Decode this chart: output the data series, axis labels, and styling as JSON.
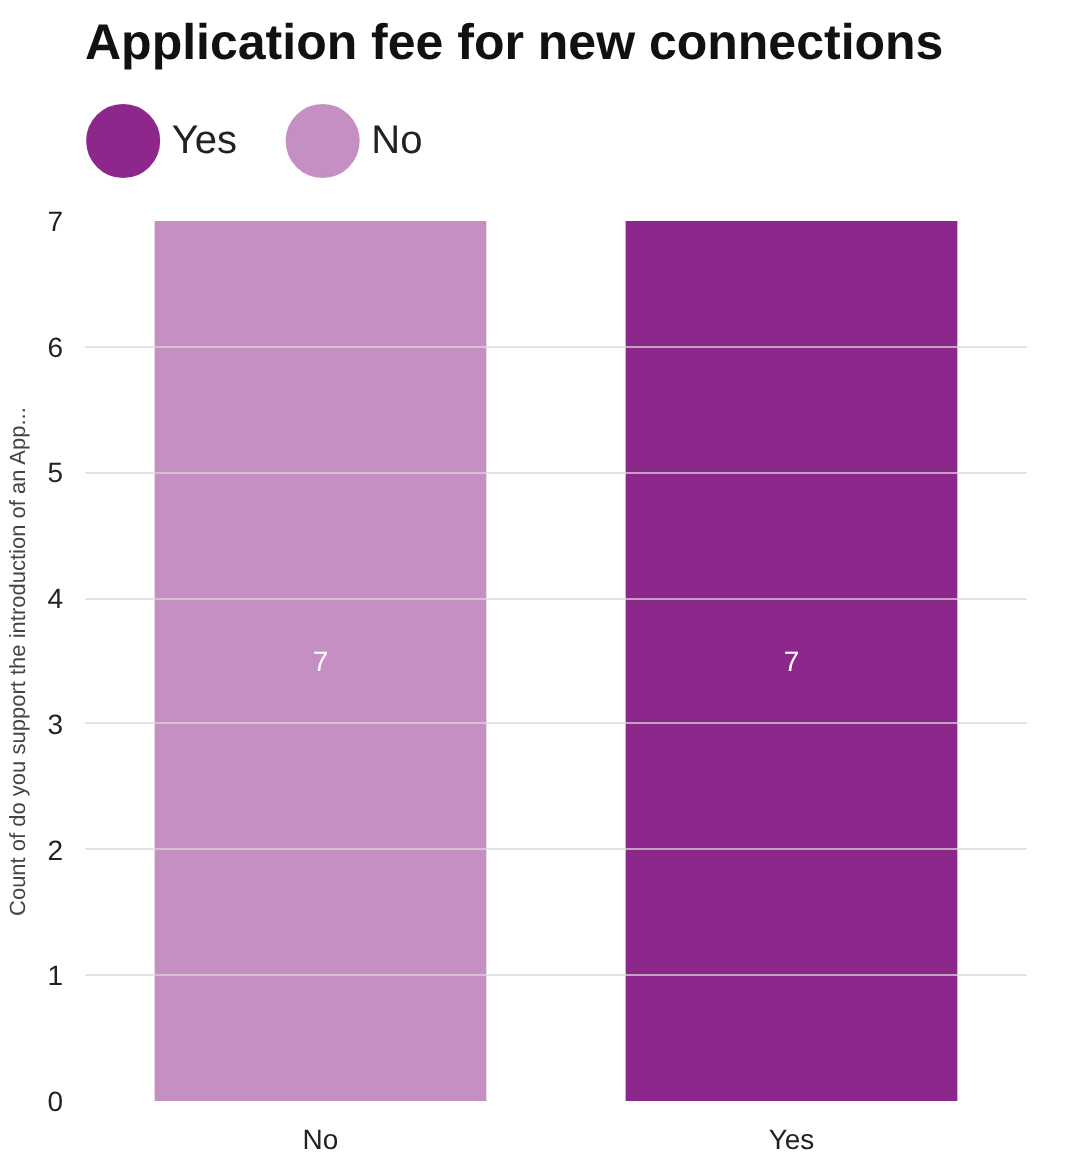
{
  "chart_data": {
    "type": "bar",
    "title": "Application fee for new connections",
    "ylabel": "Count of do you support the introduction of an App...",
    "categories": [
      "No",
      "Yes"
    ],
    "series": [
      {
        "name": "Yes",
        "color": "#8e278c",
        "values": [
          null,
          7
        ]
      },
      {
        "name": "No",
        "color": "#c68fc3",
        "values": [
          7,
          null
        ]
      }
    ],
    "ylim": [
      0,
      7
    ],
    "yticks": [
      0,
      1,
      2,
      3,
      4,
      5,
      6,
      7
    ],
    "grid": "y",
    "legend": "top left",
    "data_labels": true
  }
}
